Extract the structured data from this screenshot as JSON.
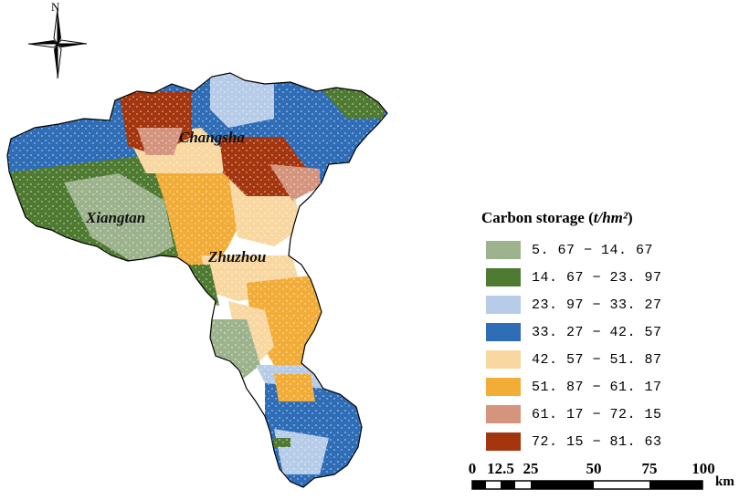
{
  "compass": {
    "label": "N",
    "icon": "north-arrow-icon"
  },
  "cities": [
    {
      "name": "Changsha"
    },
    {
      "name": "Xiangtan"
    },
    {
      "name": "Zhuzhou"
    }
  ],
  "legend": {
    "title_prefix": "Carbon storage (",
    "title_unit": "t/hm²",
    "title_suffix": ")",
    "items": [
      {
        "label": "5. 67 − 14. 67",
        "color": "#9db38d"
      },
      {
        "label": "14. 67 − 23. 97",
        "color": "#4f7a31"
      },
      {
        "label": "23. 97 − 33. 27",
        "color": "#b6cce8"
      },
      {
        "label": "33. 27 − 42. 57",
        "color": "#2f6db7"
      },
      {
        "label": "42. 57 − 51. 87",
        "color": "#f8d7a1"
      },
      {
        "label": "51. 87 − 61. 17",
        "color": "#f2ac38"
      },
      {
        "label": "61. 17 − 72. 15",
        "color": "#d4947d"
      },
      {
        "label": "72. 15 − 81. 63",
        "color": "#a3350f"
      }
    ]
  },
  "scalebar": {
    "ticks": [
      "0",
      "12.5",
      "25",
      "50",
      "75",
      "100"
    ],
    "unit": "km"
  }
}
